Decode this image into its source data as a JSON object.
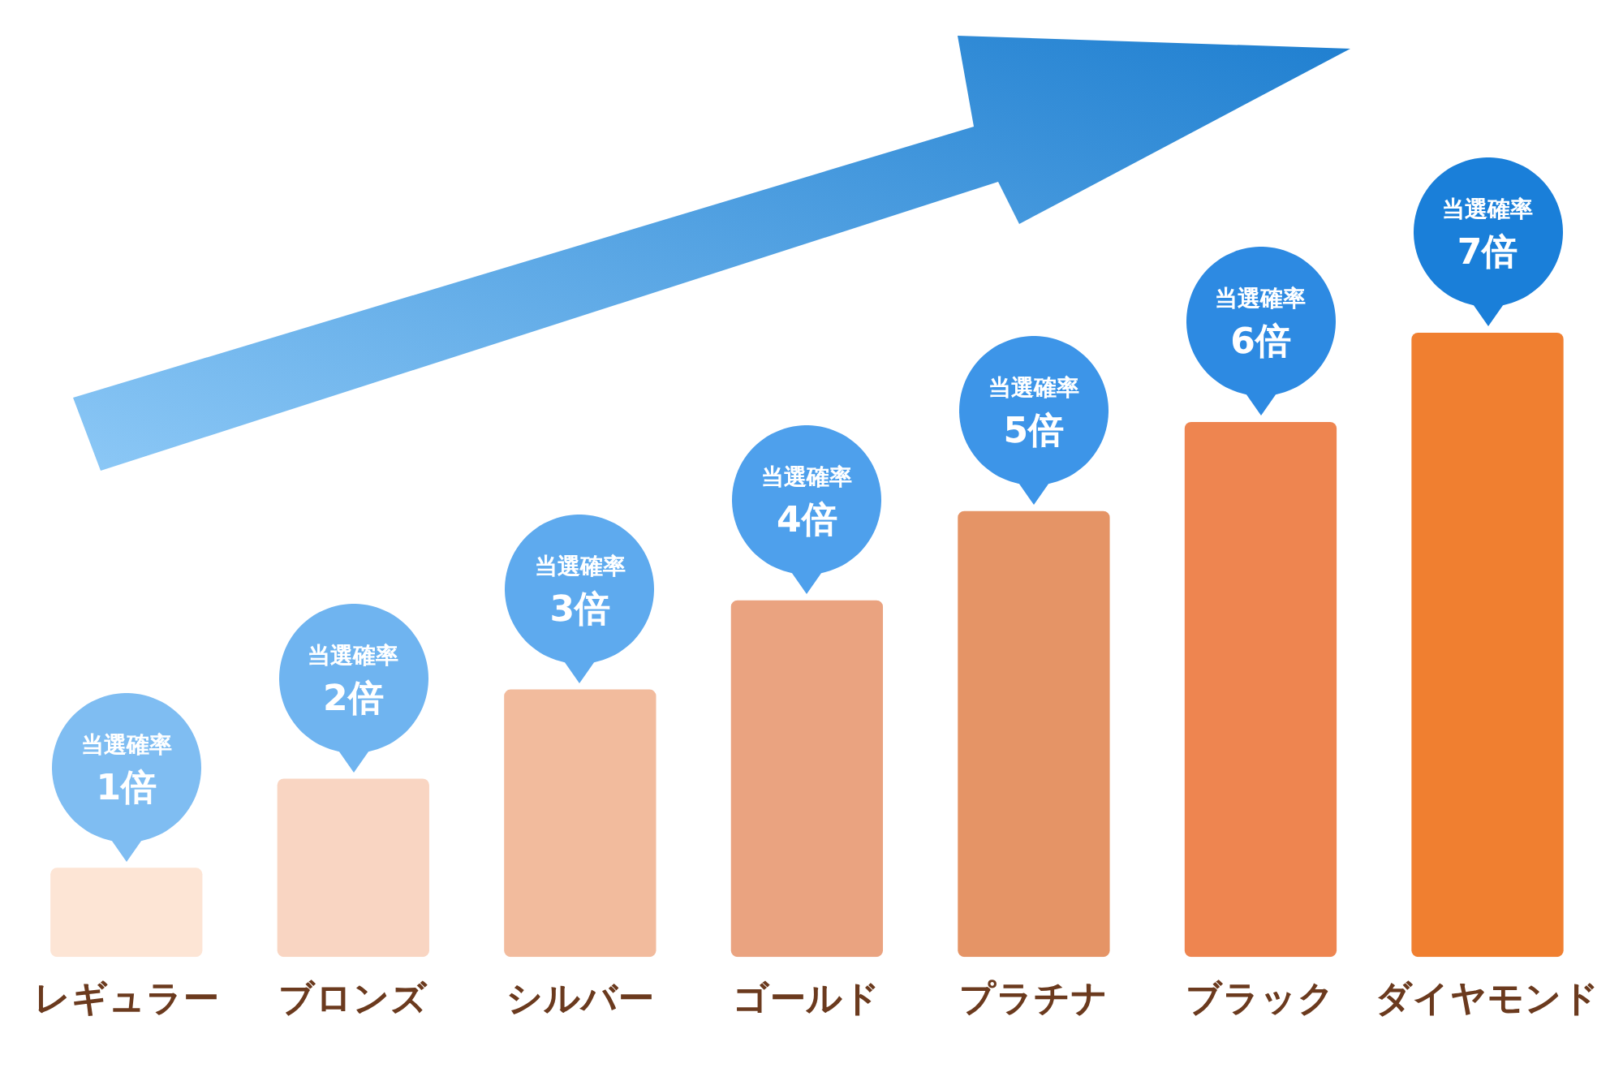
{
  "chart_data": {
    "type": "bar",
    "legend": false,
    "grid": false,
    "categories": [
      "レギュラー",
      "ブロンズ",
      "シルバー",
      "ゴールド",
      "プラチナ",
      "ブラック",
      "ダイヤモンド"
    ],
    "values": [
      1,
      2,
      3,
      4,
      5,
      6,
      7
    ],
    "colors": [
      "#fde5d5",
      "#f9d5c2",
      "#f2bb9d",
      "#eaa380",
      "#e59466",
      "#ee8550",
      "#f07f30"
    ],
    "value_labels": [
      "当選確率\n1倍",
      "当選確率\n2倍",
      "当選確率\n3倍",
      "当選確率\n4倍",
      "当選確率\n5倍",
      "当選確率\n6倍",
      "当選確率\n7倍"
    ]
  }
}
